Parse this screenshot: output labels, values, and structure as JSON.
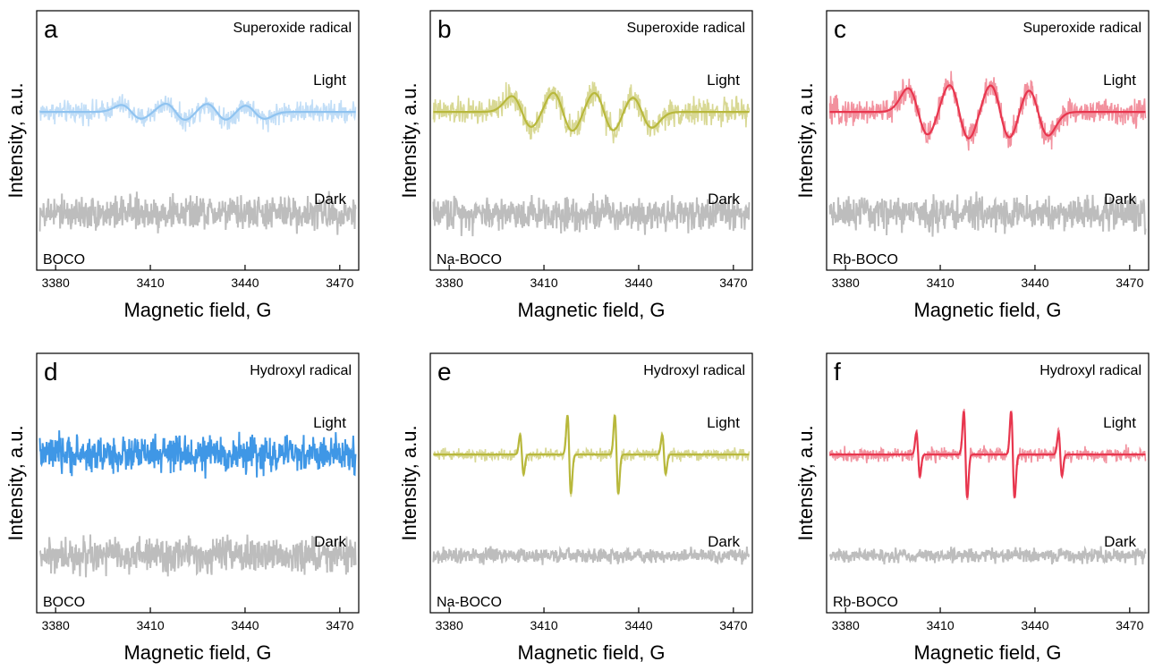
{
  "figure": {
    "xlabel": "Magnetic field, G",
    "ylabel": "Intensity, a.u.",
    "xticks": [
      "3380",
      "3410",
      "3440",
      "3470"
    ]
  },
  "chart_data": [
    {
      "type": "line",
      "panel_label": "a",
      "title": "Superoxide radical",
      "sample": "BOCO",
      "xlabel": "Magnetic field, G",
      "ylabel": "Intensity, a.u.",
      "xlim": [
        3374,
        3476
      ],
      "light_color": "#8fc3f0",
      "dark_color": "#bdbdbd",
      "series": [
        {
          "name": "Light",
          "kind": "superoxide",
          "centers": [
            3404,
            3418,
            3431,
            3443
          ],
          "amplitudes": [
            0.35,
            0.42,
            0.42,
            0.35
          ],
          "noise": 0.45
        },
        {
          "name": "Dark",
          "kind": "noise",
          "noise": 0.7
        }
      ]
    },
    {
      "type": "line",
      "panel_label": "b",
      "title": "Superoxide radical",
      "sample": "Na-BOCO",
      "xlabel": "Magnetic field, G",
      "ylabel": "Intensity, a.u.",
      "xlim": [
        3374,
        3476
      ],
      "light_color": "#b8b83c",
      "dark_color": "#bdbdbd",
      "series": [
        {
          "name": "Light",
          "kind": "superoxide",
          "centers": [
            3403,
            3416,
            3429,
            3441
          ],
          "amplitudes": [
            0.8,
            1.0,
            1.0,
            0.8
          ],
          "noise": 0.55
        },
        {
          "name": "Dark",
          "kind": "noise",
          "noise": 0.7
        }
      ]
    },
    {
      "type": "line",
      "panel_label": "c",
      "title": "Superoxide radical",
      "sample": "Rb-BOCO",
      "xlabel": "Magnetic field, G",
      "ylabel": "Intensity, a.u.",
      "xlim": [
        3374,
        3476
      ],
      "light_color": "#e8364e",
      "dark_color": "#bdbdbd",
      "series": [
        {
          "name": "Light",
          "kind": "superoxide",
          "centers": [
            3403,
            3416,
            3429,
            3441
          ],
          "amplitudes": [
            1.2,
            1.4,
            1.4,
            1.2
          ],
          "noise": 0.55
        },
        {
          "name": "Dark",
          "kind": "noise",
          "noise": 0.7
        }
      ]
    },
    {
      "type": "line",
      "panel_label": "d",
      "title": "Hydroxyl radical",
      "sample": "BOCO",
      "xlabel": "Magnetic field, G",
      "ylabel": "Intensity, a.u.",
      "xlim": [
        3374,
        3476
      ],
      "light_color": "#3f97e6",
      "dark_color": "#bdbdbd",
      "series": [
        {
          "name": "Light",
          "kind": "noise",
          "noise": 0.75
        },
        {
          "name": "Dark",
          "kind": "noise",
          "noise": 0.75
        }
      ]
    },
    {
      "type": "line",
      "panel_label": "e",
      "title": "Hydroxyl radical",
      "sample": "Na-BOCO",
      "xlabel": "Magnetic field, G",
      "ylabel": "Intensity, a.u.",
      "xlim": [
        3374,
        3476
      ],
      "light_color": "#b8b83c",
      "dark_color": "#bdbdbd",
      "series": [
        {
          "name": "Light",
          "kind": "hydroxyl",
          "centers": [
            3403,
            3418,
            3433,
            3448
          ],
          "amplitudes": [
            1.0,
            2.0,
            2.0,
            1.0
          ],
          "noise": 0.25
        },
        {
          "name": "Dark",
          "kind": "noise",
          "noise": 0.3
        }
      ]
    },
    {
      "type": "line",
      "panel_label": "f",
      "title": "Hydroxyl radical",
      "sample": "Rb-BOCO",
      "xlabel": "Magnetic field, G",
      "ylabel": "Intensity, a.u.",
      "xlim": [
        3374,
        3476
      ],
      "light_color": "#e8364e",
      "dark_color": "#bdbdbd",
      "series": [
        {
          "name": "Light",
          "kind": "hydroxyl",
          "centers": [
            3403,
            3418,
            3433,
            3448
          ],
          "amplitudes": [
            1.1,
            2.2,
            2.2,
            1.1
          ],
          "noise": 0.3
        },
        {
          "name": "Dark",
          "kind": "noise",
          "noise": 0.3
        }
      ]
    }
  ]
}
